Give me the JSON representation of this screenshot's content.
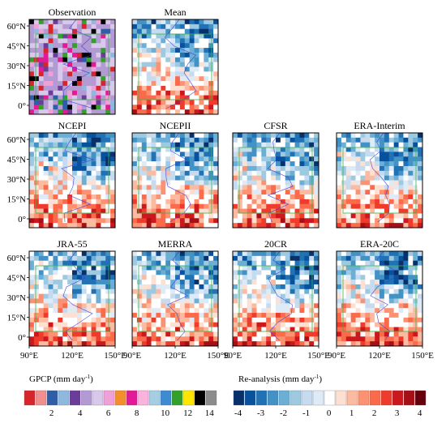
{
  "chart_data": {
    "type": "heatmap",
    "panels": [
      {
        "title": "Observation",
        "field": "gpcp"
      },
      {
        "title": "Mean",
        "field": "reanalysis"
      },
      {
        "title": "NCEPI",
        "field": "reanalysis"
      },
      {
        "title": "NCEPII",
        "field": "reanalysis"
      },
      {
        "title": "CFSR",
        "field": "reanalysis"
      },
      {
        "title": "ERA-Interim",
        "field": "reanalysis"
      },
      {
        "title": "JRA-55",
        "field": "reanalysis"
      },
      {
        "title": "MERRA",
        "field": "reanalysis"
      },
      {
        "title": "20CR",
        "field": "reanalysis"
      },
      {
        "title": "ERA-20C",
        "field": "reanalysis"
      }
    ],
    "lat_ticks": [
      "60°N",
      "45°N",
      "30°N",
      "15°N",
      "0°"
    ],
    "lon_ticks": [
      "90°E",
      "120°E",
      "150°E"
    ],
    "colorbars": [
      {
        "title": "GPCP",
        "unit": "(mm day",
        "unit_sup": "-1",
        "unit_end": ")",
        "colors": [
          "#d7262b",
          "#f08f8e",
          "#2f5ea6",
          "#8fb8de",
          "#6a3d9a",
          "#b39ad2",
          "#d8c9ea",
          "#f0a0d8",
          "#f28e2b",
          "#e31a95",
          "#f9b3dc",
          "#a6cee3",
          "#3d8bd1",
          "#33a02c",
          "#ffe600",
          "#000000",
          "#8c8c8c"
        ],
        "labels": [
          "2",
          "4",
          "6",
          "8",
          "10",
          "12",
          "14"
        ]
      },
      {
        "title": "Re-analysis",
        "unit": "(mm day",
        "unit_sup": "-1",
        "unit_end": ")",
        "colors": [
          "#08306b",
          "#08519c",
          "#2171b5",
          "#4292c6",
          "#6baed6",
          "#9ecae1",
          "#c6dbef",
          "#deebf7",
          "#ffffff",
          "#fde0d2",
          "#fcbba1",
          "#fc9272",
          "#fb6a4a",
          "#ef3b2c",
          "#cb181d",
          "#a50f15",
          "#67000d"
        ],
        "labels": [
          "-4",
          "-3",
          "-2",
          "-1",
          "0",
          "1",
          "2",
          "3",
          "4"
        ]
      }
    ]
  }
}
